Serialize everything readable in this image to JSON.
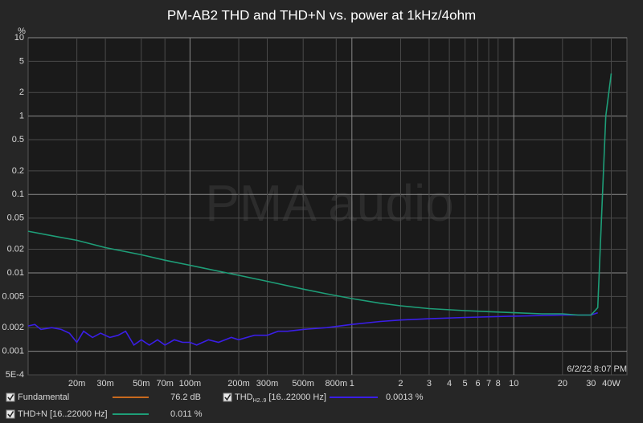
{
  "chart_data": {
    "type": "line",
    "title": "PM-AB2 THD and THD+N vs. power at 1kHz/4ohm",
    "y_unit": "%",
    "watermark": "PMA audio",
    "timestamp": "6/2/22 8:07 PM",
    "log_x": true,
    "log_y": true,
    "grid": true,
    "xlim": [
      0.01,
      50
    ],
    "ylim": [
      0.0005,
      10
    ],
    "xticks": [
      {
        "value": 0.02,
        "label": "20m"
      },
      {
        "value": 0.03,
        "label": "30m"
      },
      {
        "value": 0.05,
        "label": "50m"
      },
      {
        "value": 0.07,
        "label": "70m"
      },
      {
        "value": 0.1,
        "label": "100m"
      },
      {
        "value": 0.2,
        "label": "200m"
      },
      {
        "value": 0.3,
        "label": "300m"
      },
      {
        "value": 0.5,
        "label": "500m"
      },
      {
        "value": 0.8,
        "label": "800m"
      },
      1,
      2,
      3,
      4,
      5,
      6,
      7,
      8,
      10,
      20,
      30,
      {
        "value": 40,
        "label": "40W"
      }
    ],
    "yticks": [
      10,
      5,
      2,
      1,
      0.5,
      0.2,
      0.1,
      0.05,
      0.02,
      0.01,
      0.005,
      0.002,
      0.001,
      {
        "value": 0.0005,
        "label": "5E-4"
      }
    ],
    "series": [
      {
        "name": "Fundamental",
        "color": "#c8691e",
        "readout": "76.2 dB"
      },
      {
        "name": "THD",
        "name_sub": "H2..9",
        "name_suffix": "[16..22000 Hz]",
        "color": "#3a1ee6",
        "readout": "0.0013 %",
        "x": [
          0.01,
          0.011,
          0.012,
          0.014,
          0.016,
          0.018,
          0.02,
          0.022,
          0.025,
          0.028,
          0.032,
          0.036,
          0.04,
          0.045,
          0.05,
          0.056,
          0.063,
          0.07,
          0.08,
          0.09,
          0.1,
          0.11,
          0.13,
          0.15,
          0.18,
          0.2,
          0.25,
          0.3,
          0.35,
          0.4,
          0.5,
          0.7,
          1,
          1.5,
          2,
          3,
          5,
          10,
          20,
          30,
          33
        ],
        "values": [
          0.0021,
          0.0022,
          0.0019,
          0.002,
          0.0019,
          0.0017,
          0.0013,
          0.0018,
          0.0015,
          0.0017,
          0.0015,
          0.0016,
          0.0018,
          0.0012,
          0.0014,
          0.0012,
          0.0014,
          0.0012,
          0.0014,
          0.0013,
          0.0013,
          0.0012,
          0.0014,
          0.0013,
          0.0015,
          0.0014,
          0.0016,
          0.0016,
          0.0018,
          0.0018,
          0.0019,
          0.002,
          0.0022,
          0.0024,
          0.0025,
          0.0026,
          0.0027,
          0.0028,
          0.0029,
          0.0029,
          0.0031
        ]
      },
      {
        "name": "THD+N [16..22000 Hz]",
        "color": "#1e9e78",
        "readout": "0.011 %",
        "x": [
          0.01,
          0.015,
          0.02,
          0.03,
          0.05,
          0.07,
          0.1,
          0.15,
          0.2,
          0.3,
          0.5,
          0.7,
          1,
          1.5,
          2,
          3,
          5,
          7,
          10,
          15,
          20,
          25,
          30,
          33,
          37,
          40
        ],
        "values": [
          0.034,
          0.029,
          0.026,
          0.021,
          0.017,
          0.0145,
          0.0125,
          0.0105,
          0.0093,
          0.0078,
          0.0062,
          0.0054,
          0.0047,
          0.0041,
          0.0038,
          0.0035,
          0.0033,
          0.0032,
          0.0031,
          0.003,
          0.003,
          0.0029,
          0.0029,
          0.0036,
          1.0,
          3.5
        ]
      }
    ]
  }
}
